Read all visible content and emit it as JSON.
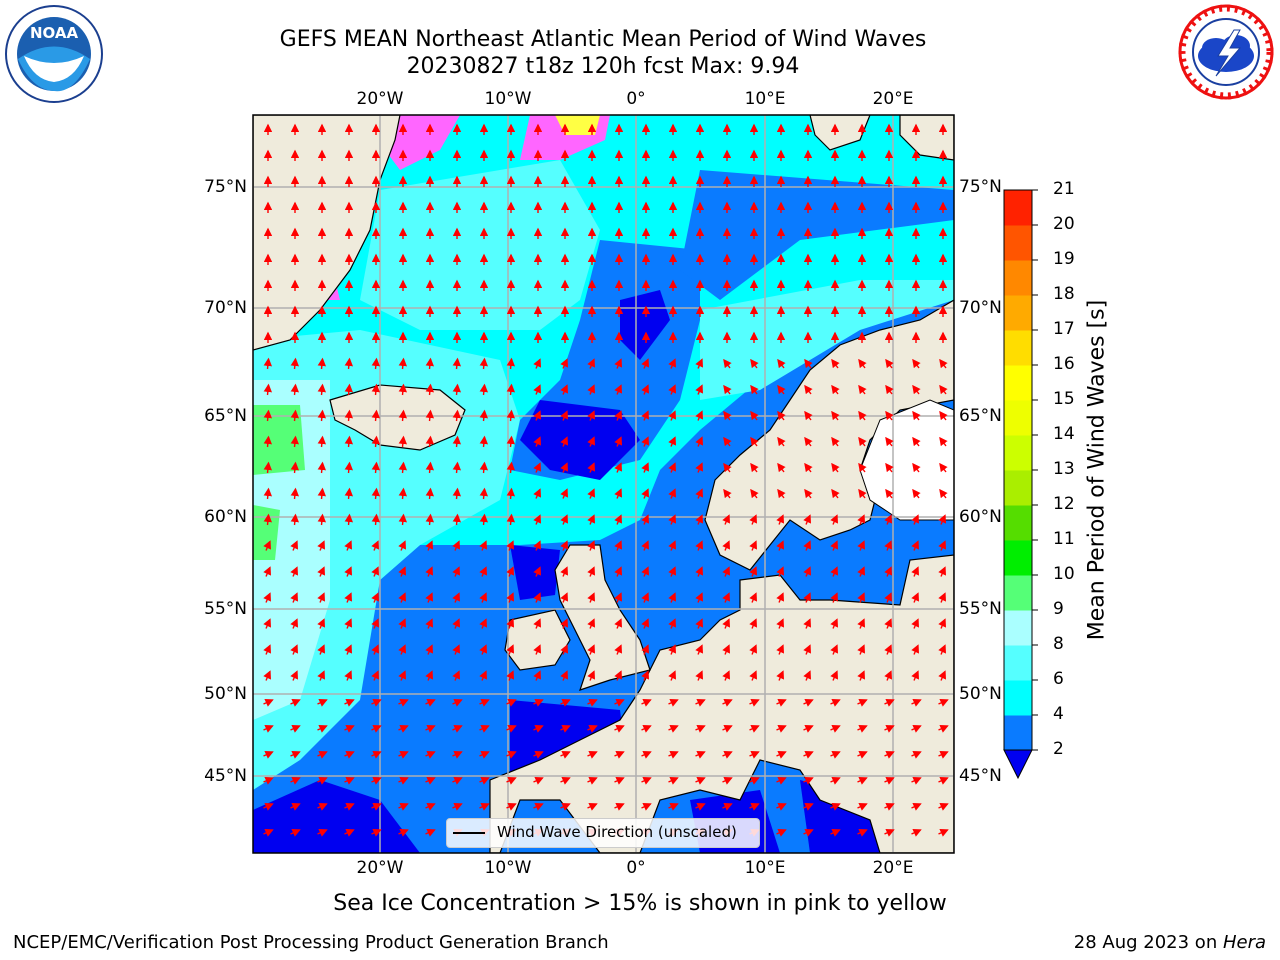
{
  "header": {
    "title_line1": "GEFS MEAN Northeast Atlantic Mean Period of Wind Waves",
    "title_line2": "20230827 t18z 120h fcst   Max: 9.94"
  },
  "logos": {
    "left": {
      "name": "noaa-logo",
      "text": "NOAA",
      "ring_text": "NATIONAL OCEANIC AND ATMOSPHERIC ADMINISTRATION · U.S. DEPARTMENT OF COMMERCE"
    },
    "right": {
      "name": "nws-logo",
      "ring_text": "NATIONAL WEATHER SERVICE"
    }
  },
  "map": {
    "lon_labels": [
      "20°W",
      "10°W",
      "0°",
      "10°E",
      "20°E"
    ],
    "lat_labels": [
      "75°N",
      "70°N",
      "65°N",
      "60°N",
      "55°N",
      "50°N",
      "45°N"
    ],
    "legend_label": "Wind Wave Direction (unscaled)",
    "colors": {
      "land": "#efebdc",
      "deep_blue": "#0000f0",
      "blue": "#0a7bff",
      "cyan": "#00ffff",
      "light_cyan": "#55ffff",
      "pale_cyan": "#aaffff",
      "green": "#55ff77",
      "arrow": "#ff0000",
      "ice_pink": "#ff66ff",
      "ice_yellow": "#ffff44"
    }
  },
  "colorbar": {
    "label": "Mean Period of Wind Waves [s]",
    "ticks": [
      "2",
      "4",
      "6",
      "8",
      "9",
      "10",
      "11",
      "12",
      "13",
      "14",
      "15",
      "16",
      "17",
      "18",
      "19",
      "20",
      "21"
    ],
    "colors": [
      "#0a7bff",
      "#00ffff",
      "#55ffff",
      "#aaffff",
      "#55ff77",
      "#00ee00",
      "#55dd00",
      "#aaee00",
      "#ccff00",
      "#eeff00",
      "#ffff00",
      "#ffdd00",
      "#ffaa00",
      "#ff8800",
      "#ff5500",
      "#ff2200"
    ],
    "under_color": "#0000f0"
  },
  "ice_note": "Sea Ice Concentration > 15% is shown in pink to yellow",
  "footer": {
    "left": "NCEP/EMC/Verification Post Processing Product Generation Branch",
    "right_prefix": "28 Aug 2023 on ",
    "right_host": "Hera"
  }
}
